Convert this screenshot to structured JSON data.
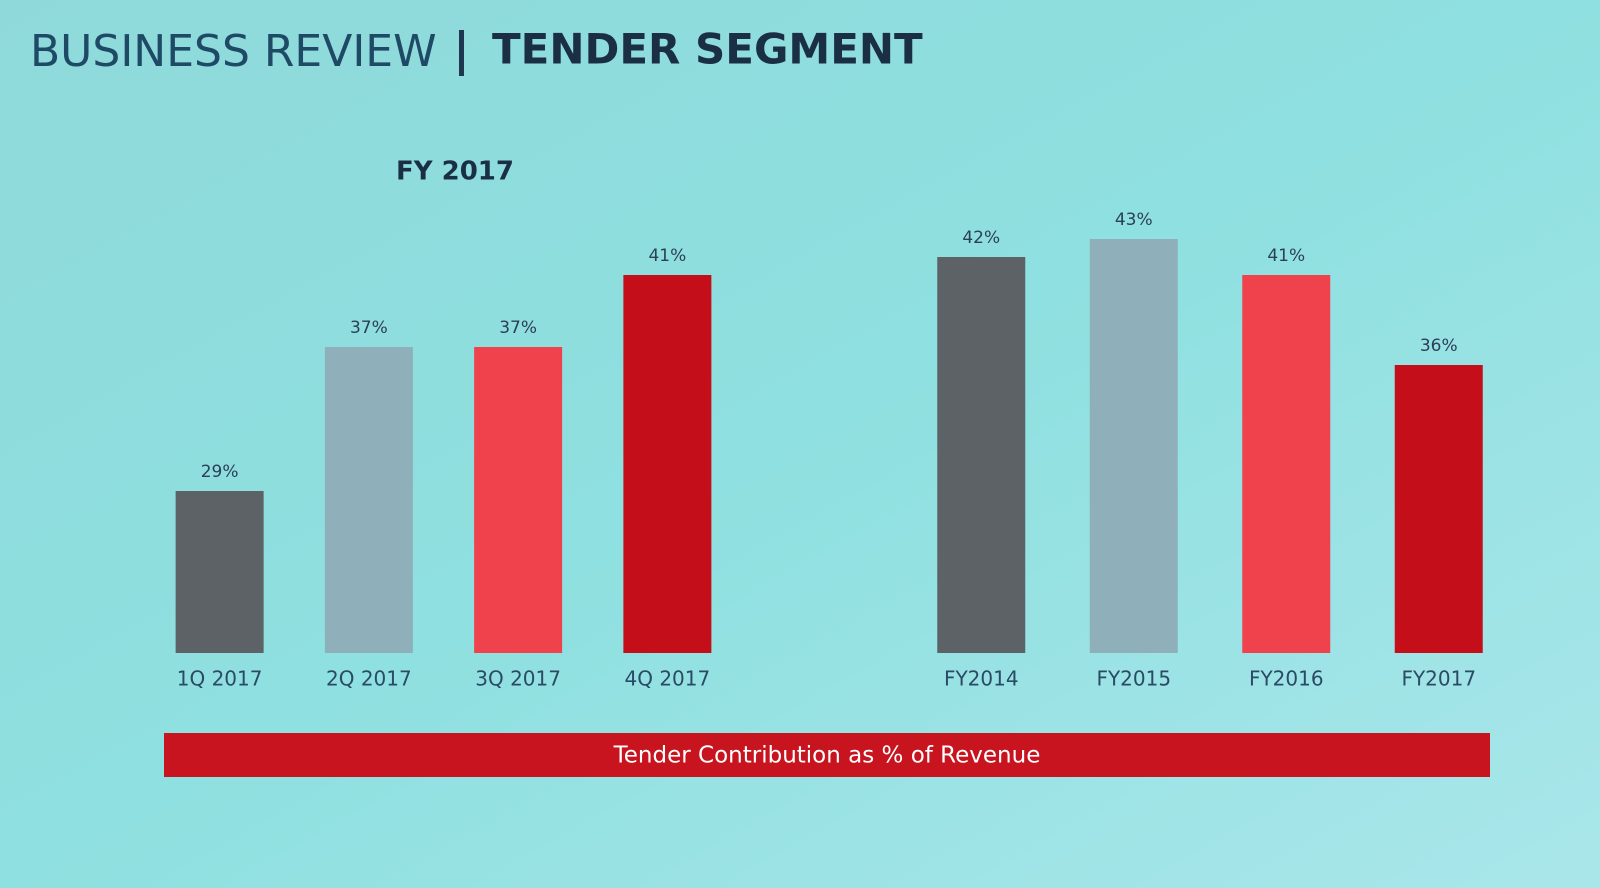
{
  "header": {
    "title": "BUSINESS REVIEW",
    "subtitle": "TENDER SEGMENT"
  },
  "chart_data": [
    {
      "type": "bar",
      "title": "FY 2017",
      "categories": [
        "1Q 2017",
        "2Q 2017",
        "3Q 2017",
        "4Q 2017"
      ],
      "values": [
        29,
        37,
        37,
        41
      ],
      "value_labels": [
        "29%",
        "37%",
        "37%",
        "41%"
      ],
      "colors": [
        "#5d6267",
        "#8fb0ba",
        "#f0424c",
        "#c40f1b"
      ],
      "ylim": [
        20,
        45
      ]
    },
    {
      "type": "bar",
      "categories": [
        "FY2014",
        "FY2015",
        "FY2016",
        "FY2017"
      ],
      "values": [
        42,
        43,
        41,
        36
      ],
      "value_labels": [
        "42%",
        "43%",
        "41%",
        "36%"
      ],
      "colors": [
        "#5d6267",
        "#8fb0ba",
        "#f0424c",
        "#c40f1b"
      ],
      "ylim": [
        20,
        45
      ]
    }
  ],
  "caption": "Tender Contribution as % of Revenue"
}
